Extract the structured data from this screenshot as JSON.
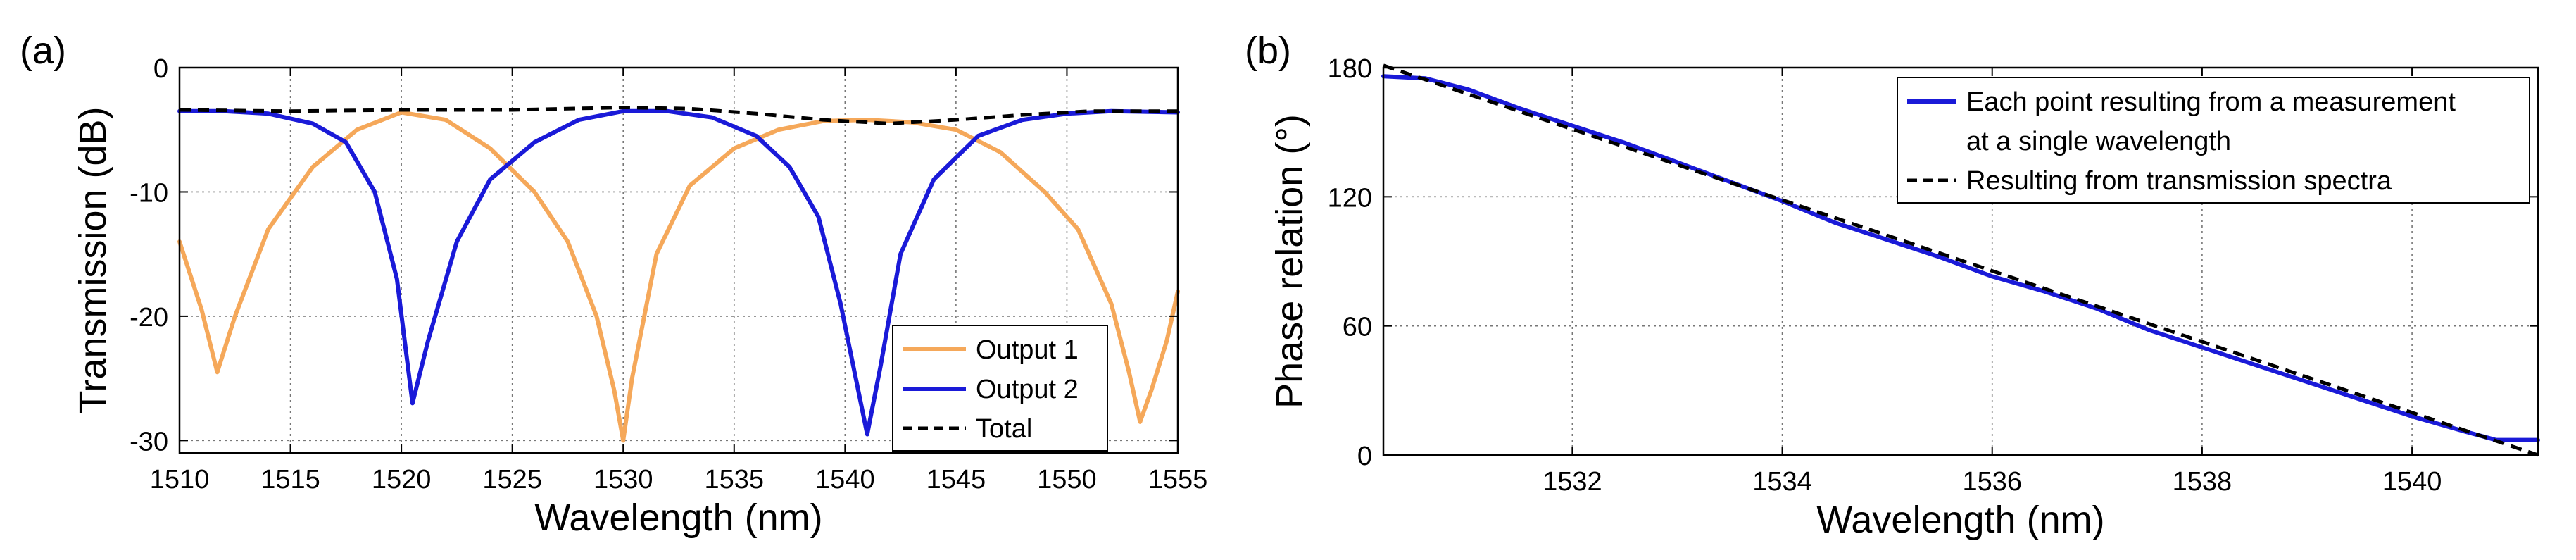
{
  "chart_data": [
    {
      "panel_label": "(a)",
      "type": "line",
      "xlabel": "Wavelength (nm)",
      "ylabel": "Transmission (dB)",
      "xlim": [
        1510,
        1555
      ],
      "ylim": [
        -31,
        0
      ],
      "xticks": [
        1510,
        1515,
        1520,
        1525,
        1530,
        1535,
        1540,
        1545,
        1550,
        1555
      ],
      "yticks": [
        0,
        -10,
        -20,
        -30
      ],
      "grid": true,
      "legend_position": "bottom-right",
      "series": [
        {
          "name": "Output 1",
          "color": "#f5a85a",
          "style": "solid",
          "x": [
            1510,
            1511,
            1511.7,
            1512.5,
            1514,
            1516,
            1518,
            1520,
            1522,
            1524,
            1526,
            1527.5,
            1528.8,
            1529.6,
            1530,
            1530.4,
            1531.5,
            1533,
            1535,
            1537,
            1539,
            1541,
            1543,
            1545,
            1547,
            1549,
            1550.5,
            1552,
            1552.8,
            1553.3,
            1553.8,
            1554.5,
            1555
          ],
          "y": [
            -14,
            -19.5,
            -24.5,
            -20,
            -13,
            -8,
            -5,
            -3.6,
            -4.2,
            -6.5,
            -10,
            -14,
            -20,
            -26,
            -30,
            -25,
            -15,
            -9.5,
            -6.5,
            -5,
            -4.3,
            -4.2,
            -4.4,
            -5,
            -6.8,
            -10,
            -13,
            -19,
            -24.5,
            -28.5,
            -26,
            -22,
            -18
          ]
        },
        {
          "name": "Output 2",
          "color": "#1a1ad8",
          "style": "solid",
          "x": [
            1510,
            1512,
            1514,
            1516,
            1517.5,
            1518.8,
            1519.8,
            1520.5,
            1521.2,
            1522.5,
            1524,
            1526,
            1528,
            1530,
            1532,
            1534,
            1536,
            1537.5,
            1538.8,
            1539.8,
            1541,
            1541.6,
            1542.5,
            1544,
            1546,
            1548,
            1550,
            1552,
            1555
          ],
          "y": [
            -3.5,
            -3.5,
            -3.7,
            -4.5,
            -6,
            -10,
            -17,
            -27,
            -22,
            -14,
            -9,
            -6,
            -4.2,
            -3.5,
            -3.5,
            -4,
            -5.5,
            -8,
            -12,
            -19,
            -29.5,
            -24,
            -15,
            -9,
            -5.5,
            -4.2,
            -3.7,
            -3.5,
            -3.6
          ]
        },
        {
          "name": "Total",
          "color": "#000000",
          "style": "dashed",
          "x": [
            1510,
            1515,
            1520,
            1525,
            1530,
            1533,
            1536,
            1539,
            1542,
            1545,
            1548,
            1551,
            1555
          ],
          "y": [
            -3.4,
            -3.5,
            -3.4,
            -3.4,
            -3.2,
            -3.3,
            -3.7,
            -4.2,
            -4.5,
            -4.2,
            -3.8,
            -3.5,
            -3.5
          ]
        }
      ]
    },
    {
      "panel_label": "(b)",
      "type": "line",
      "xlabel": "Wavelength (nm)",
      "ylabel": "Phase relation (°)",
      "xlim": [
        1530.2,
        1541.2
      ],
      "ylim": [
        0,
        180
      ],
      "xticks": [
        1532,
        1534,
        1536,
        1538,
        1540
      ],
      "yticks": [
        0,
        60,
        120,
        180
      ],
      "grid": true,
      "legend_position": "top-right",
      "series": [
        {
          "name": "Each point resulting from a measurement at a single wavelength",
          "legend_lines": [
            "Each point resulting from a measurement",
            "at a single wavelength"
          ],
          "color": "#1a1ad8",
          "style": "solid",
          "x": [
            1530.2,
            1530.6,
            1531,
            1531.5,
            1532,
            1532.5,
            1533,
            1533.5,
            1534,
            1534.5,
            1535,
            1535.5,
            1536,
            1536.5,
            1537,
            1537.5,
            1538,
            1538.5,
            1539,
            1539.5,
            1540,
            1540.5,
            1540.8,
            1541.2
          ],
          "y": [
            176,
            175,
            170,
            161,
            153,
            145,
            136,
            127,
            118,
            108,
            100,
            92,
            83,
            76,
            68,
            58,
            50,
            42,
            34,
            26,
            18,
            11,
            7,
            7
          ]
        },
        {
          "name": "Resulting from transmission spectra",
          "legend_lines": [
            "Resulting from transmission spectra"
          ],
          "color": "#000000",
          "style": "dashed",
          "x": [
            1530.2,
            1541.2
          ],
          "y": [
            181,
            0
          ]
        }
      ]
    }
  ]
}
